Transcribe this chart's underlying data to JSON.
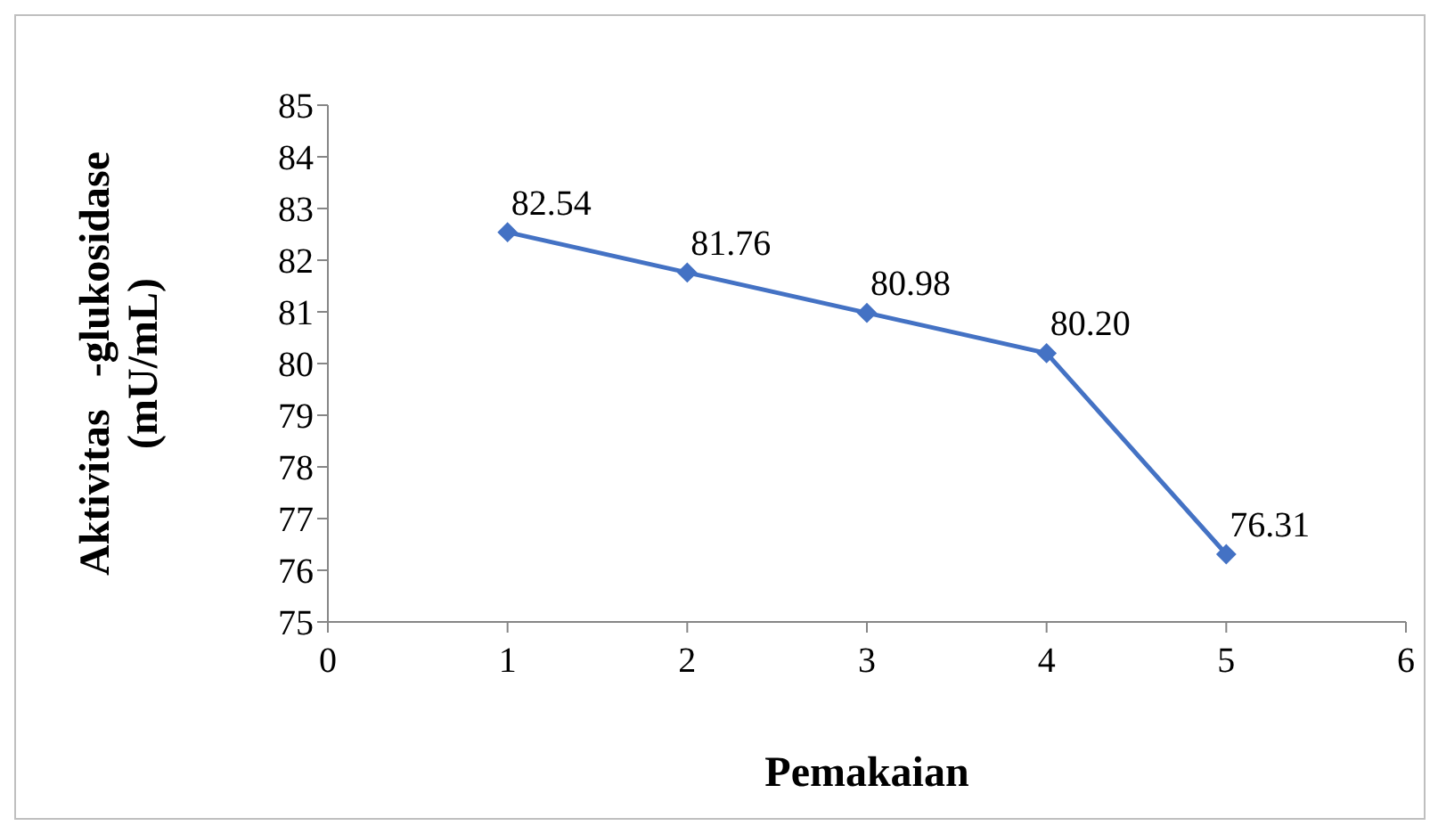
{
  "chart_data": {
    "type": "line",
    "xlabel": "Pemakaian",
    "ylabel": "Aktivitas   -glukosidase\n(mU/mL)",
    "x": [
      1,
      2,
      3,
      4,
      5
    ],
    "series": [
      {
        "color": "#4472c4",
        "values": [
          82.54,
          81.76,
          80.98,
          80.2,
          76.31
        ]
      }
    ],
    "value_labels": [
      "82.54",
      "81.76",
      "80.98",
      "80.20",
      "76.31"
    ],
    "xlim": [
      0,
      6
    ],
    "xticks": [
      0,
      1,
      2,
      3,
      4,
      5,
      6
    ],
    "ylim": [
      75,
      85
    ],
    "yticks": [
      75,
      76,
      77,
      78,
      79,
      80,
      81,
      82,
      83,
      84,
      85
    ],
    "grid": false,
    "legend": false,
    "marker": "diamond",
    "line_style": "solid"
  }
}
